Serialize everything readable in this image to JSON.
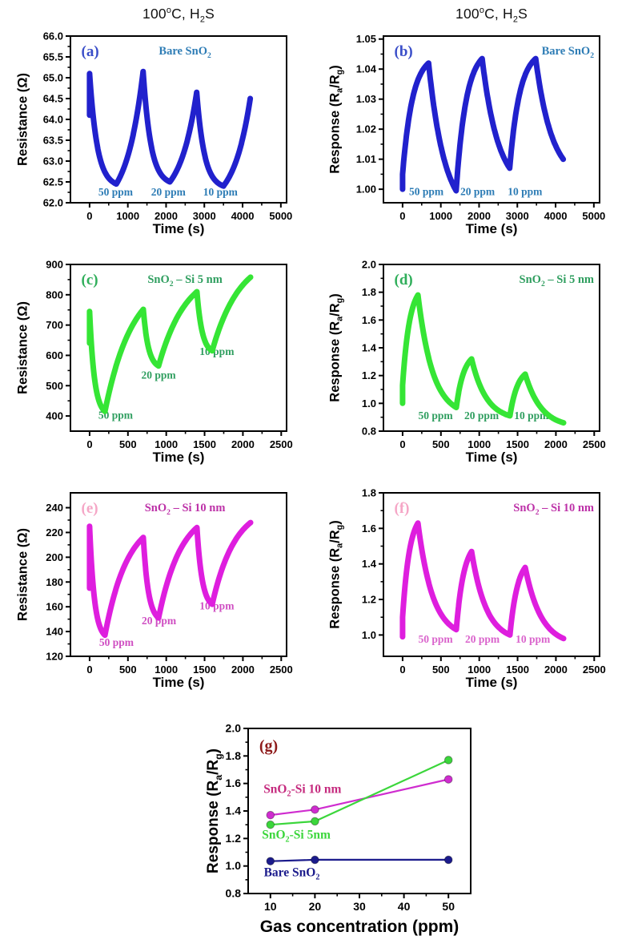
{
  "chart_data": [
    {
      "id": "a",
      "type": "line",
      "panel_letter": "(a)",
      "letter_color": "#3a4ec9",
      "title_segments": [
        [
          "t",
          "100"
        ],
        [
          "sup",
          "o"
        ],
        [
          "t",
          "C, H"
        ],
        [
          "sub",
          "2"
        ],
        [
          "t",
          "S"
        ]
      ],
      "sample_label": {
        "segments": [
          [
            "t",
            "Bare SnO"
          ],
          [
            "sub",
            "2"
          ]
        ],
        "color": "#2d7cb5",
        "align": "center"
      },
      "xlabel": "Time (s)",
      "ylabel_segments": [
        [
          "t",
          "Resistance (Ω)"
        ]
      ],
      "frame": [
        88,
        45,
        270,
        208
      ],
      "xlim": [
        -500,
        5150
      ],
      "ylim": [
        62.0,
        66.0
      ],
      "xticks": [
        0,
        1000,
        2000,
        3000,
        4000,
        5000
      ],
      "yticks": [
        62.0,
        62.5,
        63.0,
        63.5,
        64.0,
        64.5,
        65.0,
        65.5,
        66.0
      ],
      "ydec": 1,
      "curve_color": "#2121cd",
      "line_width": 7,
      "keypoints": [
        [
          0,
          64.1
        ],
        [
          0,
          65.1,
          "linear",
          0
        ],
        [
          700,
          62.45,
          "out",
          3.5
        ],
        [
          1400,
          65.15,
          "in",
          1.6
        ],
        [
          2100,
          62.5,
          "out",
          3.5
        ],
        [
          2800,
          64.65,
          "in",
          1.6
        ],
        [
          3500,
          62.4,
          "out",
          3.5
        ],
        [
          4200,
          64.5,
          "in",
          1.6
        ]
      ],
      "annotations": [
        {
          "text": "50 ppm",
          "x": 680,
          "y": 62.17,
          "color": "#2d7cb5"
        },
        {
          "text": "20 ppm",
          "x": 2060,
          "y": 62.17,
          "color": "#2d7cb5"
        },
        {
          "text": "10 ppm",
          "x": 3420,
          "y": 62.17,
          "color": "#2d7cb5"
        }
      ]
    },
    {
      "id": "b",
      "type": "line",
      "panel_letter": "(b)",
      "letter_color": "#3a4ec9",
      "title_segments": [
        [
          "t",
          "100"
        ],
        [
          "sup",
          "o"
        ],
        [
          "t",
          "C, H"
        ],
        [
          "sub",
          "2"
        ],
        [
          "t",
          "S"
        ]
      ],
      "sample_label": {
        "segments": [
          [
            "t",
            "Bare SnO"
          ],
          [
            "sub",
            "2"
          ]
        ],
        "color": "#2d7cb5",
        "align": "right"
      },
      "xlabel": "Time (s)",
      "ylabel_segments": [
        [
          "t",
          "Response (R"
        ],
        [
          "sub",
          "a"
        ],
        [
          "t",
          "/R"
        ],
        [
          "sub",
          "g"
        ],
        [
          "t",
          ")"
        ]
      ],
      "frame": [
        88,
        45,
        270,
        208
      ],
      "xlim": [
        -500,
        5150
      ],
      "ylim": [
        0.9955,
        1.051
      ],
      "xticks": [
        0,
        1000,
        2000,
        3000,
        4000,
        5000
      ],
      "yticks": [
        1.0,
        1.01,
        1.02,
        1.03,
        1.04,
        1.05
      ],
      "ydec": 2,
      "curve_color": "#2121cd",
      "line_width": 7,
      "keypoints": [
        [
          0,
          1.0
        ],
        [
          0,
          1.005,
          "linear",
          0
        ],
        [
          680,
          1.042,
          "out",
          2.6
        ],
        [
          1400,
          0.9995,
          "out",
          1.7
        ],
        [
          2080,
          1.0435,
          "out",
          2.6
        ],
        [
          2800,
          1.007,
          "out",
          1.7
        ],
        [
          3480,
          1.0435,
          "out",
          2.6
        ],
        [
          4200,
          1.01,
          "out",
          1.7
        ]
      ],
      "annotations": [
        {
          "text": "50 ppm",
          "x": 620,
          "y": 0.998,
          "color": "#2d7cb5"
        },
        {
          "text": "20 ppm",
          "x": 1960,
          "y": 0.998,
          "color": "#2d7cb5"
        },
        {
          "text": "10 ppm",
          "x": 3200,
          "y": 0.998,
          "color": "#2d7cb5"
        }
      ]
    },
    {
      "id": "c",
      "type": "line",
      "panel_letter": "(c)",
      "letter_color": "#2fae5a",
      "sample_label": {
        "segments": [
          [
            "t",
            "SnO"
          ],
          [
            "sub",
            "2"
          ],
          [
            "t",
            " – Si 5 nm"
          ]
        ],
        "color": "#2f9e5f",
        "align": "center"
      },
      "xlabel": "Time (s)",
      "ylabel_segments": [
        [
          "t",
          "Resistance (Ω)"
        ]
      ],
      "frame": [
        88,
        40,
        270,
        208
      ],
      "xlim": [
        -250,
        2570
      ],
      "ylim": [
        350,
        900
      ],
      "xticks": [
        0,
        500,
        1000,
        1500,
        2000,
        2500
      ],
      "yticks": [
        400,
        500,
        600,
        700,
        800,
        900
      ],
      "ydec": 0,
      "curve_color": "#35e535",
      "line_width": 7,
      "keypoints": [
        [
          0,
          640
        ],
        [
          0,
          745,
          "linear",
          0
        ],
        [
          200,
          415,
          "out",
          3.2
        ],
        [
          700,
          752,
          "out",
          1.4
        ],
        [
          900,
          565,
          "out",
          3.0
        ],
        [
          1400,
          810,
          "out",
          1.4
        ],
        [
          1600,
          615,
          "out",
          3.0
        ],
        [
          2100,
          858,
          "out",
          1.4
        ]
      ],
      "annotations": [
        {
          "text": "50 ppm",
          "x": 340,
          "y": 391,
          "color": "#2f9e5f"
        },
        {
          "text": "20 ppm",
          "x": 900,
          "y": 523,
          "color": "#2f9e5f"
        },
        {
          "text": "10 ppm",
          "x": 1660,
          "y": 601,
          "color": "#2f9e5f"
        }
      ]
    },
    {
      "id": "d",
      "type": "line",
      "panel_letter": "(d)",
      "letter_color": "#2fae5a",
      "sample_label": {
        "segments": [
          [
            "t",
            "SnO"
          ],
          [
            "sub",
            "2"
          ],
          [
            "t",
            " – Si 5 nm"
          ]
        ],
        "color": "#2f9e5f",
        "align": "right"
      },
      "xlabel": "Time (s)",
      "ylabel_segments": [
        [
          "t",
          "Response (R"
        ],
        [
          "sub",
          "a"
        ],
        [
          "t",
          "/R"
        ],
        [
          "sub",
          "g"
        ],
        [
          "t",
          ")"
        ]
      ],
      "frame": [
        88,
        40,
        270,
        208
      ],
      "xlim": [
        -250,
        2570
      ],
      "ylim": [
        0.8,
        2.0
      ],
      "xticks": [
        0,
        500,
        1000,
        1500,
        2000,
        2500
      ],
      "yticks": [
        0.8,
        1.0,
        1.2,
        1.4,
        1.6,
        1.8,
        2.0
      ],
      "ydec": 1,
      "curve_color": "#35e535",
      "line_width": 7,
      "keypoints": [
        [
          0,
          1.0
        ],
        [
          0,
          1.13,
          "linear",
          0
        ],
        [
          200,
          1.78,
          "out",
          2.2
        ],
        [
          700,
          0.97,
          "out",
          2.6
        ],
        [
          900,
          1.32,
          "out",
          2.0
        ],
        [
          1400,
          0.91,
          "out",
          2.6
        ],
        [
          1600,
          1.21,
          "out",
          2.0
        ],
        [
          2100,
          0.86,
          "out",
          2.4
        ]
      ],
      "annotations": [
        {
          "text": "50 ppm",
          "x": 430,
          "y": 0.886,
          "color": "#2f9e5f"
        },
        {
          "text": "20 ppm",
          "x": 1030,
          "y": 0.886,
          "color": "#2f9e5f"
        },
        {
          "text": "10 ppm",
          "x": 1680,
          "y": 0.886,
          "color": "#2f9e5f"
        }
      ]
    },
    {
      "id": "e",
      "type": "line",
      "panel_letter": "(e)",
      "letter_color": "#f5a6c6",
      "sample_label": {
        "segments": [
          [
            "t",
            "SnO"
          ],
          [
            "sub",
            "2"
          ],
          [
            "t",
            " – Si 10 nm"
          ]
        ],
        "color": "#bd32a8",
        "align": "center"
      },
      "xlabel": "Time (s)",
      "ylabel_segments": [
        [
          "t",
          "Resistance (Ω)"
        ]
      ],
      "frame": [
        88,
        35,
        270,
        204
      ],
      "xlim": [
        -250,
        2570
      ],
      "ylim": [
        120,
        252
      ],
      "xticks": [
        0,
        500,
        1000,
        1500,
        2000,
        2500
      ],
      "yticks": [
        120,
        140,
        160,
        180,
        200,
        220,
        240
      ],
      "ydec": 0,
      "curve_color": "#de1ede",
      "line_width": 7,
      "keypoints": [
        [
          0,
          175
        ],
        [
          0,
          225,
          "linear",
          0
        ],
        [
          200,
          137,
          "out",
          3.2
        ],
        [
          700,
          216,
          "out",
          1.7
        ],
        [
          900,
          151,
          "out",
          3.0
        ],
        [
          1400,
          224,
          "out",
          1.7
        ],
        [
          1600,
          162,
          "out",
          3.0
        ],
        [
          2100,
          228,
          "out",
          1.7
        ]
      ],
      "annotations": [
        {
          "text": "50 ppm",
          "x": 350,
          "y": 128.5,
          "color": "#cf4ec2"
        },
        {
          "text": "20 ppm",
          "x": 905,
          "y": 146,
          "color": "#cf4ec2"
        },
        {
          "text": "10 ppm",
          "x": 1660,
          "y": 158,
          "color": "#cf4ec2"
        }
      ]
    },
    {
      "id": "f",
      "type": "line",
      "panel_letter": "(f)",
      "letter_color": "#f5a6c6",
      "sample_label": {
        "segments": [
          [
            "t",
            "SnO"
          ],
          [
            "sub",
            "2"
          ],
          [
            "t",
            " – Si 10 nm"
          ]
        ],
        "color": "#bd32a8",
        "align": "right"
      },
      "xlabel": "Time (s)",
      "ylabel_segments": [
        [
          "t",
          "Response (R"
        ],
        [
          "sub",
          "a"
        ],
        [
          "t",
          "/R"
        ],
        [
          "sub",
          "g"
        ],
        [
          "t",
          ")"
        ]
      ],
      "frame": [
        88,
        35,
        270,
        204
      ],
      "xlim": [
        -250,
        2570
      ],
      "ylim": [
        0.88,
        1.8
      ],
      "xticks": [
        0,
        500,
        1000,
        1500,
        2000,
        2500
      ],
      "yticks": [
        1.0,
        1.2,
        1.4,
        1.6,
        1.8
      ],
      "ydec": 1,
      "curve_color": "#de1ede",
      "line_width": 7,
      "keypoints": [
        [
          0,
          0.99
        ],
        [
          0,
          1.1,
          "linear",
          0
        ],
        [
          200,
          1.63,
          "out",
          2.2
        ],
        [
          700,
          1.03,
          "out",
          2.6
        ],
        [
          900,
          1.47,
          "out",
          2.0
        ],
        [
          1400,
          1.0,
          "out",
          2.6
        ],
        [
          1600,
          1.38,
          "out",
          2.0
        ],
        [
          2100,
          0.98,
          "out",
          2.4
        ]
      ],
      "annotations": [
        {
          "text": "50 ppm",
          "x": 430,
          "y": 0.956,
          "color": "#da64cc"
        },
        {
          "text": "20 ppm",
          "x": 1040,
          "y": 0.956,
          "color": "#da64cc"
        },
        {
          "text": "10 ppm",
          "x": 1700,
          "y": 0.956,
          "color": "#da64cc"
        }
      ]
    },
    {
      "id": "g",
      "type": "scatter",
      "panel_letter": "(g)",
      "letter_color": "#8e1a1a",
      "xlabel": "Gas concentration (ppm)",
      "ylabel_segments": [
        [
          "t",
          "Response (R"
        ],
        [
          "sub",
          "a"
        ],
        [
          "t",
          "/R"
        ],
        [
          "sub",
          "g"
        ],
        [
          "t",
          ")"
        ]
      ],
      "frame": [
        119,
        29,
        278,
        206
      ],
      "xlim": [
        5,
        55
      ],
      "ylim": [
        0.8,
        2.0
      ],
      "xticks": [
        10,
        20,
        30,
        40,
        50
      ],
      "yticks": [
        0.8,
        1.0,
        1.2,
        1.4,
        1.6,
        1.8,
        2.0
      ],
      "ydec": 1,
      "series": [
        {
          "name": "SnO2-Si 10 nm",
          "label_segments": [
            [
              "t",
              "SnO"
            ],
            [
              "sub",
              "2"
            ],
            [
              "t",
              "-Si 10 nm"
            ]
          ],
          "color": "#cf2ccf",
          "label_color": "#c52a7e",
          "label_pos": [
            17.2,
            1.53
          ],
          "points": [
            [
              10,
              1.37
            ],
            [
              20,
              1.41
            ],
            [
              50,
              1.63
            ]
          ]
        },
        {
          "name": "SnO2-Si 5nm",
          "label_segments": [
            [
              "t",
              "SnO"
            ],
            [
              "sub",
              "2"
            ],
            [
              "t",
              "-Si 5nm"
            ]
          ],
          "color": "#3bd63b",
          "label_color": "#3bd63b",
          "label_pos": [
            15.8,
            1.2
          ],
          "points": [
            [
              10,
              1.3
            ],
            [
              20,
              1.325
            ],
            [
              50,
              1.77
            ]
          ]
        },
        {
          "name": "Bare SnO2",
          "label_segments": [
            [
              "t",
              "Bare SnO"
            ],
            [
              "sub",
              "2"
            ]
          ],
          "color": "#1b1b8c",
          "label_color": "#1b1b8c",
          "label_pos": [
            14.8,
            0.925
          ],
          "points": [
            [
              10,
              1.035
            ],
            [
              20,
              1.045
            ],
            [
              50,
              1.045
            ]
          ]
        }
      ]
    }
  ]
}
